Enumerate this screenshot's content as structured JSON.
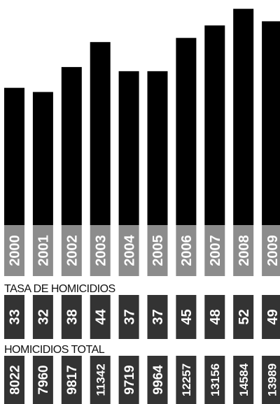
{
  "chart_data": {
    "type": "bar",
    "categories": [
      "2000",
      "2001",
      "2002",
      "2003",
      "2004",
      "2005",
      "2006",
      "2007",
      "2008",
      "2009"
    ],
    "series": [
      {
        "name": "TASA DE HOMICIDIOS",
        "values": [
          33,
          32,
          38,
          44,
          37,
          37,
          45,
          48,
          52,
          49
        ]
      },
      {
        "name": "HOMICIDIOS TOTAL",
        "values": [
          8022,
          7960,
          9817,
          11342,
          9719,
          9964,
          12257,
          13156,
          14584,
          13989
        ]
      }
    ],
    "bars_represent": "TASA DE HOMICIDIOS",
    "grid": false,
    "legend": "none",
    "colors": {
      "bar": "#000000",
      "year_box": "#8c8c8c",
      "value_box": "#333333",
      "total_box": "#333333",
      "label_text": "#ffffff",
      "heading_text": "#111111"
    }
  },
  "sections": {
    "rate_heading": "TASA DE HOMICIDIOS",
    "total_heading": "HOMICIDIOS TOTAL"
  }
}
